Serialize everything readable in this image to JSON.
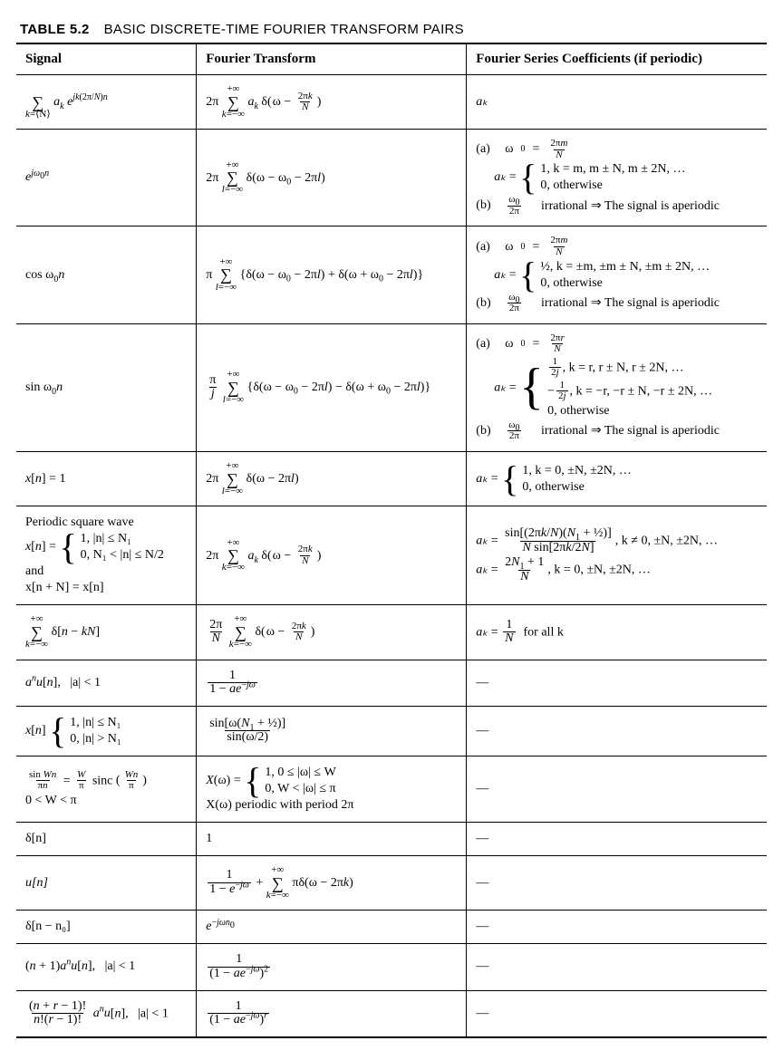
{
  "table": {
    "label": "TABLE 5.2",
    "title": "BASIC DISCRETE-TIME FOURIER TRANSFORM PAIRS",
    "headers": [
      "Signal",
      "Fourier Transform",
      "Fourier Series Coefficients (if periodic)"
    ]
  },
  "rows": {
    "r1": {
      "coef": "aₖ"
    },
    "r2": {
      "cases1": "1,   k = m, m ± N, m ± 2N, …",
      "cases0": "0,   otherwise",
      "irr": "irrational ⇒  The signal is aperiodic"
    },
    "r3": {
      "cases1": "½,   k = ±m, ±m ± N, ±m ± 2N, …",
      "cases0": "0,   otherwise",
      "irr": "irrational ⇒  The signal is aperiodic"
    },
    "r4": {
      "casesA": " k = r, r ± N, r ± 2N, …",
      "casesB": " k = −r, −r ± N, −r ± 2N, …",
      "cases0": "0,   otherwise",
      "irr": "irrational ⇒  The signal is aperiodic"
    },
    "r5": {
      "cases1": "1,   k = 0, ±N, ±2N, …",
      "cases0": "0,   otherwise"
    },
    "r6": {
      "sigTop": "Periodic square wave",
      "sigCase1": "1,   |n| ≤ N₁",
      "sigCase0": "0,   N₁ < |n| ≤ N/2",
      "sigAnd": "and",
      "sigPeriod": "x[n + N] = x[n]",
      "coefA": ",  k ≠ 0, ±N, ±2N, …",
      "coefBtail": ",  k = 0, ±N, ±2N, …"
    },
    "r7": {
      "coef": "for all k"
    },
    "r8": {
      "sigTail": "|a| < 1",
      "coef": "—"
    },
    "r9": {
      "sigCase1": "1,   |n| ≤ N₁",
      "sigCase0": "0,   |n| > N₁",
      "coef": "—"
    },
    "r10": {
      "sigCond": "0 < W < π",
      "trCase1": "1,   0 ≤ |ω| ≤ W",
      "trCase0": "0,   W < |ω| ≤ π",
      "trPeriod": "X(ω) periodic with period 2π",
      "coef": "—"
    },
    "r11": {
      "sig": "δ[n]",
      "tr": "1",
      "coef": "—"
    },
    "r12": {
      "sig": "u[n]",
      "coef": "—"
    },
    "r13": {
      "sig": "δ[n − n₀]",
      "coef": "—"
    },
    "r14": {
      "sigTail": "|a| < 1",
      "coef": "—"
    },
    "r15": {
      "sigTail": "|a| < 1",
      "coef": "—"
    }
  },
  "labels": {
    "a": "(a)",
    "b": "(b)",
    "ak": "aₖ",
    "eq": " = "
  }
}
